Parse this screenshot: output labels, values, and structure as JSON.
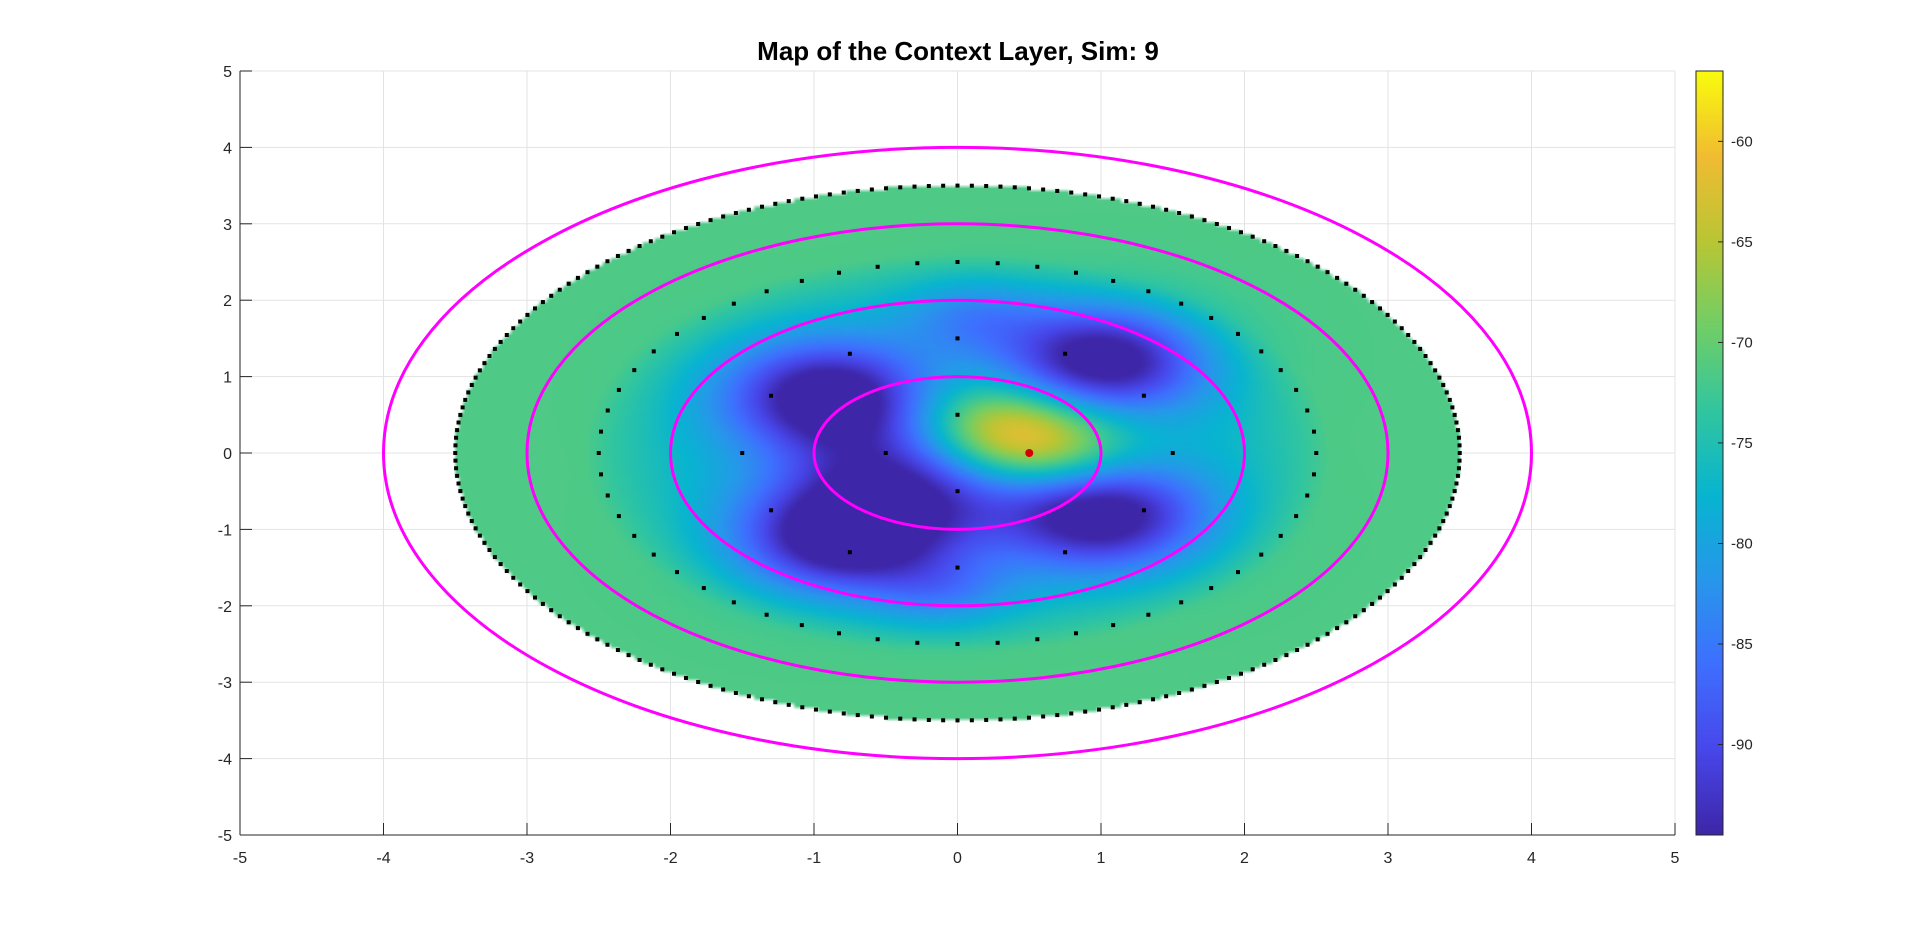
{
  "chart_data": {
    "type": "heatmap",
    "title": "Map of the Context Layer, Sim: 9",
    "xlabel": "",
    "ylabel": "",
    "xlim": [
      -5,
      5
    ],
    "ylim": [
      -5,
      5
    ],
    "xticks": [
      "-5",
      "-4",
      "-3",
      "-2",
      "-1",
      "0",
      "1",
      "2",
      "3",
      "4",
      "5"
    ],
    "yticks": [
      "-5",
      "-4",
      "-3",
      "-2",
      "-1",
      "0",
      "1",
      "2",
      "3",
      "4",
      "5"
    ],
    "grid": true,
    "colormap": "parula",
    "clim": [
      -94.5,
      -56.5
    ],
    "colorbar_ticks": [
      "-60",
      "-65",
      "-70",
      "-75",
      "-80",
      "-85",
      "-90"
    ],
    "colorbar_tick_values": [
      -60,
      -65,
      -70,
      -75,
      -80,
      -85,
      -90
    ],
    "field": {
      "outer_radius_x": 3.5,
      "outer_radius_y": 3.5,
      "background_value": -71.5,
      "blobs": [
        {
          "x": 0.2,
          "y": 0.35,
          "value": -58.0,
          "sigma": 0.45
        },
        {
          "x": 0.6,
          "y": 0.05,
          "value": -58.0,
          "sigma": 0.45
        },
        {
          "x": -0.9,
          "y": 0.75,
          "value": -93.0,
          "sigma": 0.5
        },
        {
          "x": -0.8,
          "y": -1.1,
          "value": -93.0,
          "sigma": 0.5
        },
        {
          "x": 1.0,
          "y": 1.2,
          "value": -93.0,
          "sigma": 0.5
        },
        {
          "x": 1.0,
          "y": -0.8,
          "value": -93.0,
          "sigma": 0.5
        },
        {
          "x": -0.3,
          "y": -0.3,
          "value": -88.0,
          "sigma": 0.6
        },
        {
          "x": 0.1,
          "y": 1.8,
          "value": -78.0,
          "sigma": 0.35
        },
        {
          "x": -0.1,
          "y": -1.8,
          "value": -78.0,
          "sigma": 0.35
        }
      ]
    },
    "rings": {
      "color": "#ff00ff",
      "radii": [
        1,
        2,
        3,
        4
      ]
    },
    "point_rings": [
      {
        "radius": 0.5,
        "count": 4
      },
      {
        "radius": 1.5,
        "count": 12
      },
      {
        "radius": 2.5,
        "count": 56
      },
      {
        "radius": 3.5,
        "count": 220
      }
    ],
    "highlight_point": {
      "x": 0.5,
      "y": 0.0,
      "color": "#d40000"
    }
  }
}
